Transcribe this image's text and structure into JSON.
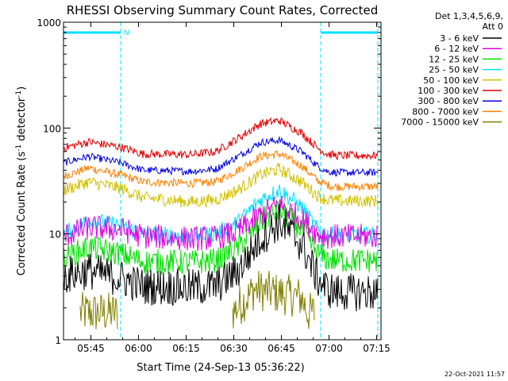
{
  "chart_data": {
    "type": "line",
    "title": "RHESSI Observing Summary Count Rates, Corrected",
    "xlabel": "Start Time (24-Sep-13 05:36:22)",
    "ylabel": "Corrected Count Rate (s⁻¹ detector⁻¹)",
    "yscale": "log",
    "ylim": [
      1,
      1000
    ],
    "xlim_minutes_after_start": [
      0,
      100
    ],
    "x_ticks": [
      "05:45",
      "06:00",
      "06:15",
      "06:30",
      "06:45",
      "07:00",
      "07:15"
    ],
    "x_tick_minutes": [
      8.63,
      23.63,
      38.63,
      53.63,
      68.63,
      83.63,
      98.63
    ],
    "y_ticks": [
      "1",
      "10",
      "100",
      "1000"
    ],
    "y_tick_values": [
      1,
      10,
      100,
      1000
    ],
    "legend_header": [
      "Det 1,3,4,5,6,9,",
      "Att 0"
    ],
    "legend_position": "right",
    "night_marker_label": "N",
    "footer_date": "22-Oct-2021 11:57",
    "night_intervals": [
      {
        "start": 0.0,
        "end": 18.0
      },
      {
        "start": 81.0,
        "end": 99.0
      }
    ],
    "series": [
      {
        "name": "3 - 6 keV",
        "color": "#000000",
        "key_x": [
          0,
          8,
          18,
          25,
          40,
          48,
          55,
          62,
          68,
          75,
          80,
          83,
          86,
          99
        ],
        "key_y": [
          4,
          4.5,
          3.8,
          3.2,
          3.1,
          3.2,
          4.5,
          9,
          13,
          8,
          3.8,
          3.0,
          2.8,
          2.8
        ],
        "noise": 0.18
      },
      {
        "name": "6 - 12 keV",
        "color": "#e000e0",
        "key_x": [
          0,
          8,
          18,
          25,
          40,
          48,
          55,
          62,
          68,
          75,
          80,
          83,
          86,
          99
        ],
        "key_y": [
          9.5,
          11.5,
          11,
          9.5,
          9,
          9.2,
          10.5,
          15,
          19,
          14,
          10,
          9.5,
          9.5,
          9.5
        ],
        "noise": 0.12
      },
      {
        "name": "12 - 25 keV",
        "color": "#00e000",
        "key_x": [
          0,
          8,
          18,
          25,
          40,
          48,
          55,
          62,
          68,
          75,
          80,
          83,
          86,
          99
        ],
        "key_y": [
          6,
          7.5,
          6.5,
          5.5,
          5.4,
          5.6,
          7.5,
          13,
          17,
          11,
          6.5,
          5.8,
          5.6,
          5.6
        ],
        "noise": 0.12
      },
      {
        "name": "25 - 50 keV",
        "color": "#00e0ff",
        "key_x": [
          0,
          8,
          18,
          25,
          40,
          48,
          55,
          62,
          68,
          75,
          80,
          83,
          86,
          99
        ],
        "key_y": [
          10,
          13.5,
          12,
          10,
          9.5,
          10,
          13,
          21,
          26,
          18,
          11,
          10,
          9.8,
          9.8
        ],
        "noise": 0.08
      },
      {
        "name": "50 - 100 keV",
        "color": "#d0c000",
        "key_x": [
          0,
          8,
          18,
          25,
          40,
          48,
          55,
          62,
          68,
          75,
          80,
          83,
          86,
          99
        ],
        "key_y": [
          26,
          31,
          27,
          22,
          20,
          21,
          26,
          36,
          41,
          31,
          23,
          21,
          20.5,
          20.5
        ],
        "noise": 0.06
      },
      {
        "name": "100 - 300 keV",
        "color": "#e00000",
        "key_x": [
          0,
          8,
          18,
          25,
          40,
          48,
          55,
          62,
          68,
          75,
          80,
          83,
          86,
          99
        ],
        "key_y": [
          65,
          74,
          66,
          57,
          56,
          60,
          80,
          110,
          118,
          90,
          65,
          57,
          55,
          55
        ],
        "noise": 0.04
      },
      {
        "name": "300 - 800 keV",
        "color": "#0000e0",
        "key_x": [
          0,
          8,
          18,
          25,
          40,
          48,
          55,
          62,
          68,
          75,
          80,
          83,
          86,
          99
        ],
        "key_y": [
          47,
          54,
          47,
          40,
          39,
          41,
          54,
          73,
          77,
          60,
          44,
          39,
          38,
          38
        ],
        "noise": 0.035
      },
      {
        "name": "800 - 7000 keV",
        "color": "#ff8000",
        "key_x": [
          0,
          8,
          18,
          25,
          40,
          48,
          55,
          62,
          68,
          75,
          80,
          83,
          86,
          99
        ],
        "key_y": [
          35,
          42,
          36,
          31,
          30,
          31,
          40,
          54,
          57,
          44,
          32,
          29,
          28,
          28
        ],
        "noise": 0.04
      },
      {
        "name": "7000 - 15000 keV",
        "color": "#808000",
        "key_x": [
          0,
          4,
          5,
          17,
          18,
          52,
          53,
          58,
          60,
          75,
          77,
          79,
          80
        ],
        "key_y": [
          null,
          null,
          1.8,
          1.8,
          null,
          null,
          1.8,
          2.5,
          3.0,
          2.5,
          1.8,
          1.8,
          null
        ],
        "noise": 0.2
      }
    ]
  }
}
